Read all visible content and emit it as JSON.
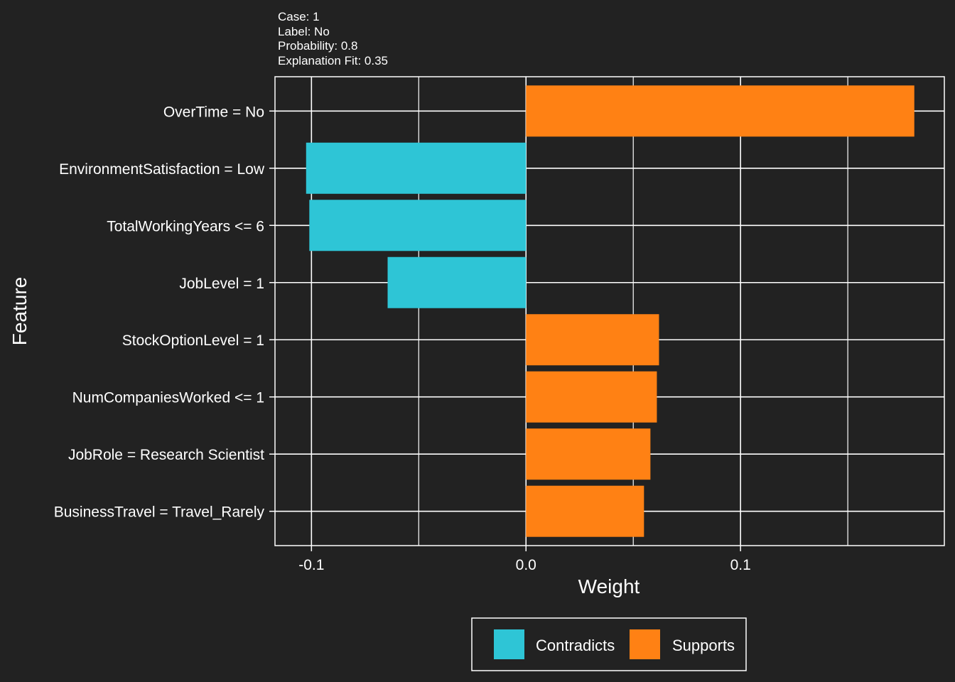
{
  "subtitle": {
    "case": "Case:  1",
    "label": "Label:  No",
    "probability": "Probability:  0.8",
    "fit": "Explanation Fit:  0.35"
  },
  "colors": {
    "background": "#222222",
    "grid": "#ffffff",
    "contradicts": "#2ec5d6",
    "supports": "#ff8114"
  },
  "chart_data": {
    "type": "bar",
    "orientation": "horizontal",
    "xlabel": "Weight",
    "ylabel": "Feature",
    "xlim": [
      -0.117,
      0.195
    ],
    "xticks": [
      -0.1,
      0.0,
      0.1
    ],
    "xtick_labels": [
      "-0.1",
      "0.0",
      "0.1"
    ],
    "grid": true,
    "legend_position": "bottom",
    "categories": [
      "OverTime = No",
      "EnvironmentSatisfaction = Low",
      "TotalWorkingYears <= 6",
      "JobLevel = 1",
      "StockOptionLevel = 1",
      "NumCompaniesWorked <= 1",
      "JobRole = Research Scientist",
      "BusinessTravel = Travel_Rarely"
    ],
    "values": [
      0.181,
      -0.1025,
      -0.101,
      -0.0645,
      0.062,
      0.061,
      0.058,
      0.055
    ],
    "groups": [
      "Supports",
      "Contradicts",
      "Contradicts",
      "Contradicts",
      "Supports",
      "Supports",
      "Supports",
      "Supports"
    ],
    "legend": [
      "Contradicts",
      "Supports"
    ]
  }
}
